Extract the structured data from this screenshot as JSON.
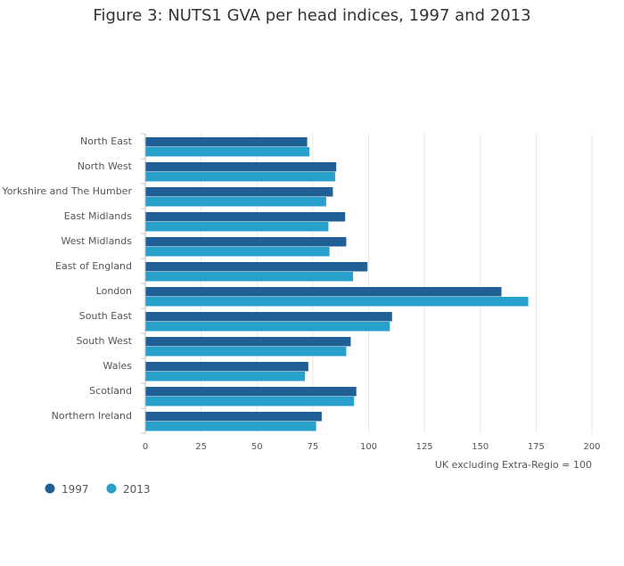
{
  "chart_data": {
    "type": "bar",
    "orientation": "horizontal",
    "title": "Figure 3: NUTS1 GVA per head indices, 1997 and 2013",
    "xlabel": "UK excluding Extra-Regio = 100",
    "ylabel": "",
    "xlim": [
      0,
      200
    ],
    "xticks": [
      0,
      25,
      50,
      75,
      100,
      125,
      150,
      175,
      200
    ],
    "grid": true,
    "legend_position": "bottom-left",
    "categories": [
      "North East",
      "North West",
      "Yorkshire and The Humber",
      "East Midlands",
      "West Midlands",
      "East of England",
      "London",
      "South East",
      "South West",
      "Wales",
      "Scotland",
      "Northern Ireland"
    ],
    "series": [
      {
        "name": "1997",
        "color": "#206095",
        "values": [
          72.5,
          85.5,
          84,
          89.5,
          90,
          99.5,
          159.5,
          110.5,
          92,
          73,
          94.5,
          79
        ]
      },
      {
        "name": "2013",
        "color": "#27a0cc",
        "values": [
          73.5,
          85,
          81,
          82,
          82.5,
          93,
          171.5,
          109.5,
          90,
          71.5,
          93.5,
          76.5
        ]
      }
    ]
  }
}
